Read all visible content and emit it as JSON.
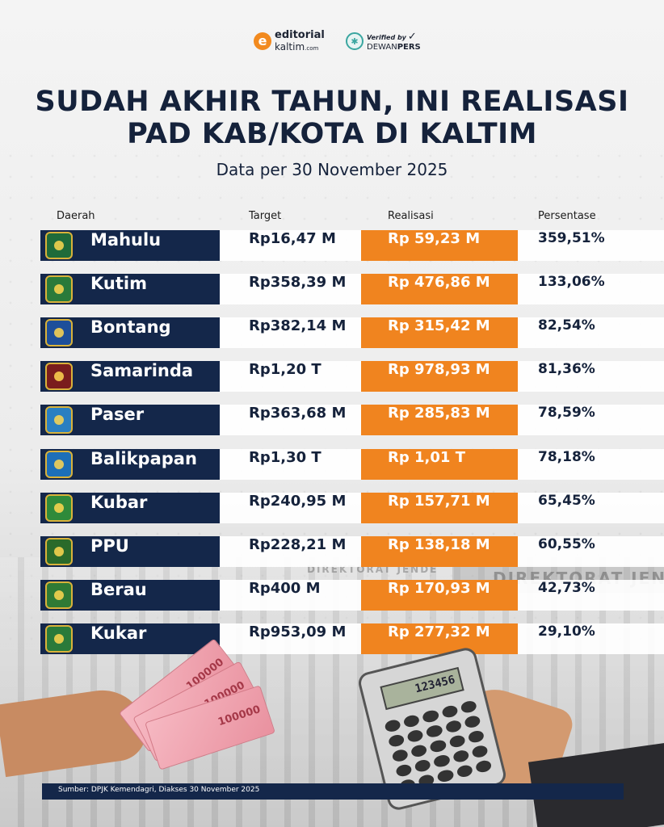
{
  "header": {
    "brand_name": "editorial",
    "brand_sub": "kaltim",
    "brand_domain": ".com",
    "verified_label": "Verified by",
    "verified_org_a": "DEWAN",
    "verified_org_b": "PERS"
  },
  "title_line1": "SUDAH AKHIR TAHUN, INI REALISASI",
  "title_line2": "PAD KAB/KOTA DI KALTIM",
  "subtitle": "Data per 30 November 2025",
  "columns": {
    "daerah": "Daerah",
    "target": "Target",
    "realisasi": "Realisasi",
    "persentase": "Persentase"
  },
  "source": "Sumber: DPJK Kemendagri, Diakses 30 November 2025",
  "background_text": {
    "sign_large": "DIREKTORAT JEND",
    "sign_small": "DIREKTORAT JENDERAL"
  },
  "illustration": {
    "banknote_label": "100000",
    "calculator_display": "123456"
  },
  "colors": {
    "navy": "#14274a",
    "orange": "#f0841f"
  },
  "chart_data": {
    "type": "table",
    "title": "SUDAH AKHIR TAHUN, INI REALISASI PAD KAB/KOTA DI KALTIM",
    "subtitle": "Data per 30 November 2025",
    "columns": [
      "Daerah",
      "Target",
      "Realisasi",
      "Persentase"
    ],
    "rows": [
      {
        "daerah": "Mahulu",
        "target": "Rp16,47 M",
        "realisasi": "Rp 59,23 M",
        "persentase": "359,51%"
      },
      {
        "daerah": "Kutim",
        "target": "Rp358,39 M",
        "realisasi": "Rp 476,86 M",
        "persentase": "133,06%"
      },
      {
        "daerah": "Bontang",
        "target": "Rp382,14 M",
        "realisasi": "Rp 315,42 M",
        "persentase": "82,54%"
      },
      {
        "daerah": "Samarinda",
        "target": "Rp1,20 T",
        "realisasi": "Rp 978,93 M",
        "persentase": "81,36%"
      },
      {
        "daerah": "Paser",
        "target": "Rp363,68 M",
        "realisasi": "Rp 285,83 M",
        "persentase": "78,59%"
      },
      {
        "daerah": "Balikpapan",
        "target": "Rp1,30 T",
        "realisasi": "Rp 1,01 T",
        "persentase": "78,18%"
      },
      {
        "daerah": "Kubar",
        "target": "Rp240,95 M",
        "realisasi": "Rp 157,71 M",
        "persentase": "65,45%"
      },
      {
        "daerah": "PPU",
        "target": "Rp228,21 M",
        "realisasi": "Rp 138,18 M",
        "persentase": "60,55%"
      },
      {
        "daerah": "Berau",
        "target": "Rp400 M",
        "realisasi": "Rp 170,93 M",
        "persentase": "42,73%"
      },
      {
        "daerah": "Kukar",
        "target": "Rp953,09 M",
        "realisasi": "Rp 277,32 M",
        "persentase": "29,10%"
      }
    ]
  }
}
